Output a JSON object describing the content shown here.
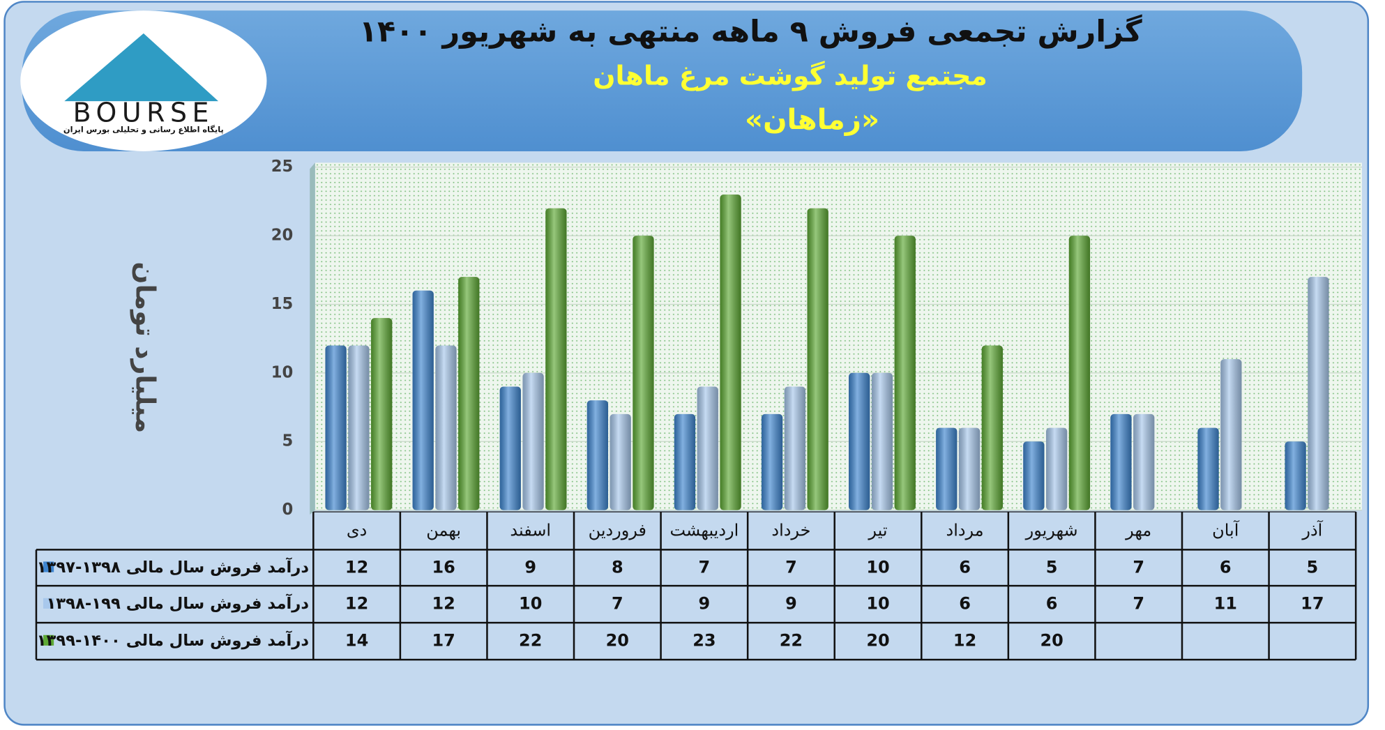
{
  "chart_data": {
    "type": "bar",
    "title": "گزارش تجمعی فروش ۹ ماهه منتهی به شهریور ۱۴۰۰",
    "subtitle": "مجتمع تولید گوشت مرغ ماهان",
    "company": "«زماهان»",
    "y_label": "میلیارد تومان",
    "logo_text": "BOURSE",
    "logo_caption": "پایگاه اطلاع رسانی و تحلیلی بورس ایران",
    "categories": [
      "دی",
      "بهمن",
      "اسفند",
      "فروردین",
      "اردیبهشت",
      "خرداد",
      "تیر",
      "مرداد",
      "شهریور",
      "مهر",
      "آبان",
      "آذر"
    ],
    "series": [
      {
        "name": "درآمد فروش سال مالی ۱۳۹۸-۱۳۹۷",
        "color": "#3f86d0",
        "values": [
          12,
          16,
          9,
          8,
          7,
          7,
          10,
          6,
          5,
          7,
          6,
          5
        ]
      },
      {
        "name": "درآمد فروش سال مالی ۱۹۹-۱۳۹۸",
        "color": "#a8c8ec",
        "values": [
          12,
          12,
          10,
          7,
          9,
          9,
          10,
          6,
          6,
          7,
          11,
          17
        ]
      },
      {
        "name": "درآمد فروش سال مالی ۱۴۰۰-۱۳۹۹",
        "color": "#5ea935",
        "values": [
          14,
          17,
          22,
          20,
          23,
          22,
          20,
          12,
          20,
          null,
          null,
          null
        ]
      }
    ],
    "ylim": [
      0,
      25
    ],
    "yticks": [
      0,
      5,
      10,
      15,
      20,
      25
    ],
    "grid": true
  }
}
